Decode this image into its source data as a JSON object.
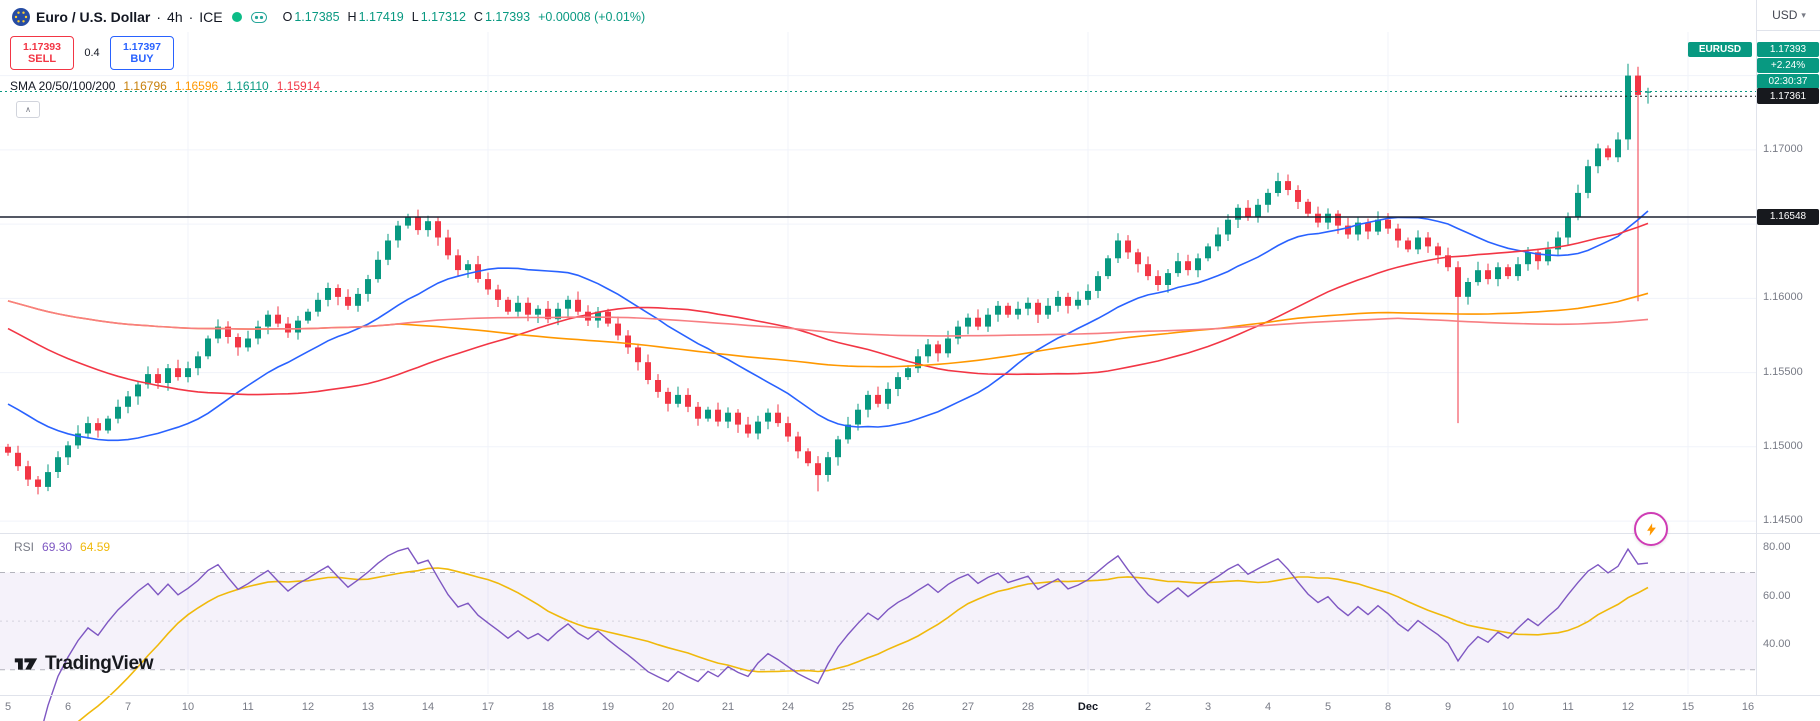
{
  "header": {
    "symbol": "Euro / U.S. Dollar",
    "dot1": "·",
    "interval": "4h",
    "dot2": "·",
    "exchange": "ICE",
    "ohlc": [
      {
        "k": "O",
        "v": "1.17385"
      },
      {
        "k": "H",
        "v": "1.17419"
      },
      {
        "k": "L",
        "v": "1.17312"
      },
      {
        "k": "C",
        "v": "1.17393"
      }
    ],
    "change": "+0.00008 (+0.01%)",
    "trade": {
      "sell_price": "1.17393",
      "sell_label": "SELL",
      "spread": "0.4",
      "buy_price": "1.17397",
      "buy_label": "BUY"
    },
    "sma": {
      "label": "SMA 20/50/100/200",
      "values": [
        {
          "text": "1.16796",
          "color": "#c77f0a"
        },
        {
          "text": "1.16596",
          "color": "#ff9800"
        },
        {
          "text": "1.16110",
          "color": "#089981"
        },
        {
          "text": "1.15914",
          "color": "#f23645"
        }
      ]
    }
  },
  "price_scale": {
    "currency": "USD",
    "symbol_pill": "EURUSD",
    "ask_badge": "1.17393",
    "change_pct": "+2.24%",
    "countdown": "02:30:37",
    "last_badge": "1.17361",
    "hline_badge": "1.16548"
  },
  "rsi_legend": {
    "label": "RSI",
    "value": "69.30",
    "ma_value": "64.59"
  },
  "logo": {
    "text": "TradingView"
  },
  "chart_data": {
    "type": "candlestick",
    "title": "Euro / U.S. Dollar · 4h · ICE",
    "symbol": "EURUSD",
    "interval": "4h",
    "up_color": "#089981",
    "down_color": "#f23645",
    "y_range": {
      "max": 1.1774,
      "min": 1.1444
    },
    "price_axis_ticks": [
      [
        "1.17000",
        1.17
      ],
      [
        "1.16000",
        1.16
      ],
      [
        "1.15500",
        1.155
      ],
      [
        "1.15000",
        1.15
      ],
      [
        "1.14500",
        1.145
      ]
    ],
    "grid_prices": [
      1.175,
      1.17,
      1.165,
      1.16,
      1.155,
      1.15,
      1.145
    ],
    "hline": {
      "price": 1.16548,
      "label": "1.16548",
      "color": "#1c2030"
    },
    "last_price": {
      "price": 1.17361,
      "label": "1.17361"
    },
    "ask_line": {
      "price": 1.17393,
      "color": "#089981"
    },
    "closes": [
      1.1496,
      1.1487,
      1.1478,
      1.1473,
      1.1483,
      1.1493,
      1.1501,
      1.1509,
      1.1516,
      1.1511,
      1.1519,
      1.1527,
      1.1534,
      1.1542,
      1.1549,
      1.1543,
      1.1553,
      1.1547,
      1.1553,
      1.1561,
      1.1573,
      1.1581,
      1.1574,
      1.1567,
      1.1573,
      1.1581,
      1.1589,
      1.1583,
      1.1577,
      1.1585,
      1.1591,
      1.1599,
      1.1607,
      1.1601,
      1.1595,
      1.1603,
      1.1613,
      1.1626,
      1.1639,
      1.1649,
      1.1655,
      1.1646,
      1.1652,
      1.1641,
      1.1629,
      1.1619,
      1.1623,
      1.1613,
      1.1606,
      1.1599,
      1.1591,
      1.1597,
      1.1589,
      1.1593,
      1.1586,
      1.1593,
      1.1599,
      1.1591,
      1.1585,
      1.1591,
      1.1583,
      1.1575,
      1.1567,
      1.1557,
      1.1545,
      1.1537,
      1.1529,
      1.1535,
      1.1527,
      1.1519,
      1.1525,
      1.1517,
      1.1523,
      1.1515,
      1.1509,
      1.1517,
      1.1523,
      1.1516,
      1.1507,
      1.1497,
      1.1489,
      1.1481,
      1.1493,
      1.1505,
      1.1515,
      1.1525,
      1.1535,
      1.1529,
      1.1539,
      1.1547,
      1.1553,
      1.1561,
      1.1569,
      1.1563,
      1.1573,
      1.1581,
      1.1587,
      1.1581,
      1.1589,
      1.1595,
      1.1589,
      1.1593,
      1.1597,
      1.1589,
      1.1595,
      1.1601,
      1.1595,
      1.1599,
      1.1605,
      1.1615,
      1.1627,
      1.1639,
      1.1631,
      1.1623,
      1.1615,
      1.1609,
      1.1617,
      1.1625,
      1.1619,
      1.1627,
      1.1635,
      1.1643,
      1.1653,
      1.1661,
      1.1655,
      1.1663,
      1.1671,
      1.1679,
      1.1673,
      1.1665,
      1.1657,
      1.1651,
      1.1657,
      1.1649,
      1.1643,
      1.1651,
      1.1645,
      1.1653,
      1.1647,
      1.1639,
      1.1633,
      1.1641,
      1.1635,
      1.1629,
      1.1621,
      1.1601,
      1.1611,
      1.1619,
      1.1613,
      1.1621,
      1.1615,
      1.1623,
      1.1631,
      1.1625,
      1.1633,
      1.1641,
      1.1655,
      1.1671,
      1.1689,
      1.1701,
      1.1695,
      1.1707,
      1.175,
      1.1737,
      1.17393
    ],
    "wick_overrides": {
      "3": {
        "l": 1.1468
      },
      "81": {
        "l": 1.147
      },
      "145": {
        "l": 1.1516
      },
      "162": {
        "h": 1.1758,
        "l": 1.17
      },
      "163": {
        "h": 1.1756,
        "l": 1.1598
      }
    },
    "last_candle_ohlc": [
      1.17385,
      1.17419,
      1.17312,
      1.17393
    ],
    "ma_warmup": {
      "start": 1.17,
      "end": 1.15,
      "count": 60
    },
    "sma": [
      {
        "period": 20,
        "color": "#2962ff"
      },
      {
        "period": 50,
        "color": "#f23645"
      },
      {
        "period": 100,
        "color": "#ff9800"
      },
      {
        "period": 200,
        "color": "#f77e82"
      }
    ],
    "rsi": {
      "period": 14,
      "ma_period": 14,
      "color": "#7e57c2",
      "ma_color": "#f0b90b",
      "band": [
        70,
        30
      ],
      "mid": 50,
      "range": {
        "max": 85,
        "min": 20
      },
      "axis_ticks": [
        [
          "80.00",
          80
        ],
        [
          "60.00",
          60
        ],
        [
          "40.00",
          40
        ]
      ]
    },
    "monday_indices": [
      18,
      48,
      78,
      108,
      138,
      168
    ],
    "time_labels": [
      [
        "5",
        0
      ],
      [
        "6",
        6
      ],
      [
        "7",
        12
      ],
      [
        "10",
        18
      ],
      [
        "11",
        24
      ],
      [
        "12",
        30
      ],
      [
        "13",
        36
      ],
      [
        "14",
        42
      ],
      [
        "17",
        48
      ],
      [
        "18",
        54
      ],
      [
        "19",
        60
      ],
      [
        "20",
        66
      ],
      [
        "21",
        72
      ],
      [
        "24",
        78
      ],
      [
        "25",
        84
      ],
      [
        "26",
        90
      ],
      [
        "27",
        96
      ],
      [
        "28",
        102
      ],
      [
        "Dec",
        108,
        1
      ],
      [
        "2",
        114
      ],
      [
        "3",
        120
      ],
      [
        "4",
        126
      ],
      [
        "5",
        132
      ],
      [
        "8",
        138
      ],
      [
        "9",
        144
      ],
      [
        "10",
        150
      ],
      [
        "11",
        156
      ],
      [
        "12",
        162
      ],
      [
        "15",
        168
      ],
      [
        "16",
        174
      ]
    ]
  }
}
